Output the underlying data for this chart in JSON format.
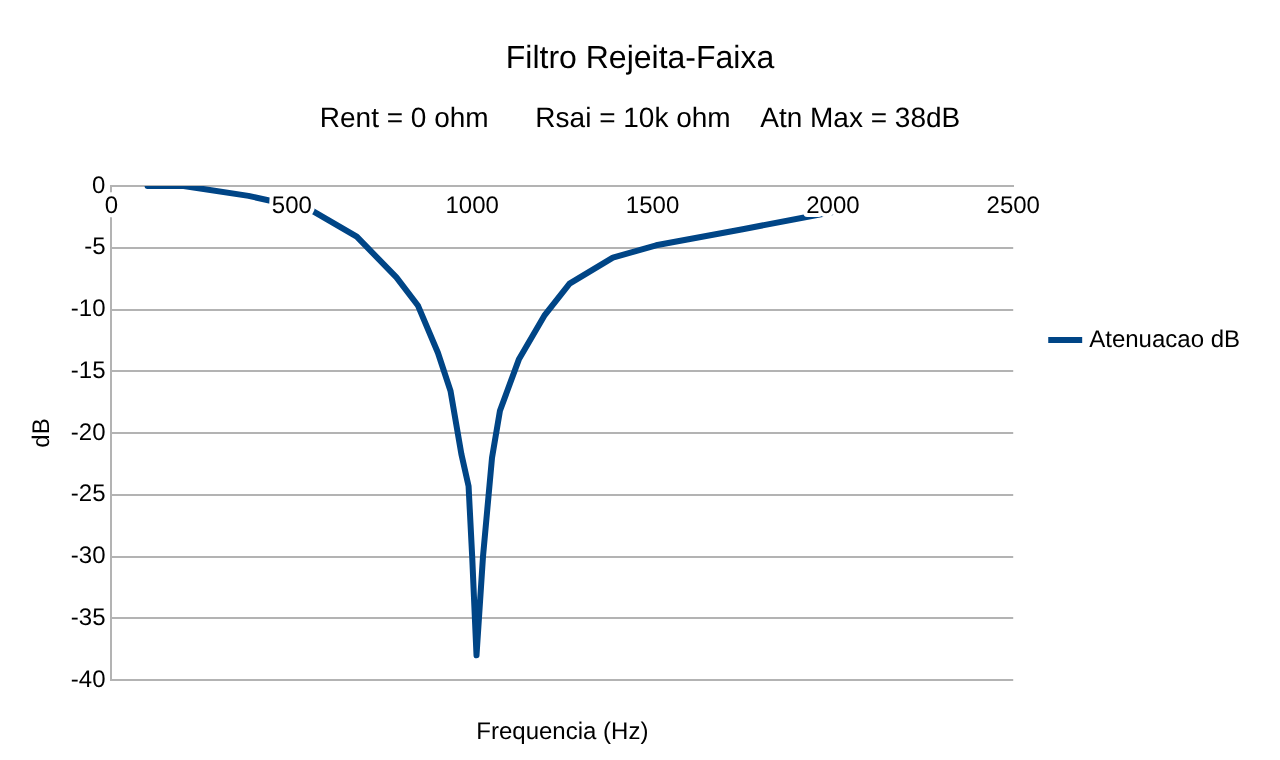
{
  "chart_data": {
    "type": "line",
    "title": "Filtro Rejeita-Faixa",
    "subtitle": "Rent = 0 ohm      Rsai = 10k ohm    Atn Max = 38dB",
    "xlabel": "Frequencia (Hz)",
    "ylabel": "dB",
    "x": [
      100,
      200,
      380,
      550,
      680,
      790,
      850,
      905,
      940,
      970,
      990,
      1000,
      1012,
      1030,
      1055,
      1077,
      1130,
      1200,
      1270,
      1390,
      1510,
      1750,
      2000
    ],
    "series": [
      {
        "name": "Atenuacao dB",
        "color": "#004586",
        "values": [
          0,
          0,
          -0.8,
          -1.9,
          -4.1,
          -7.4,
          -9.7,
          -13.5,
          -16.6,
          -21.7,
          -24.3,
          -30,
          -38,
          -30,
          -22,
          -18.2,
          -14,
          -10.5,
          -7.9,
          -5.8,
          -4.8,
          -3.5,
          -2.1
        ]
      }
    ],
    "xlim": [
      0,
      2500
    ],
    "xticks": [
      0,
      500,
      1000,
      1500,
      2000,
      2500
    ],
    "ylim": [
      -40,
      0
    ],
    "yticks": [
      -40,
      -35,
      -30,
      -25,
      -20,
      -15,
      -10,
      -5,
      0
    ],
    "grid": "y",
    "legend": "right",
    "marker": "none",
    "line_style": "solid"
  }
}
